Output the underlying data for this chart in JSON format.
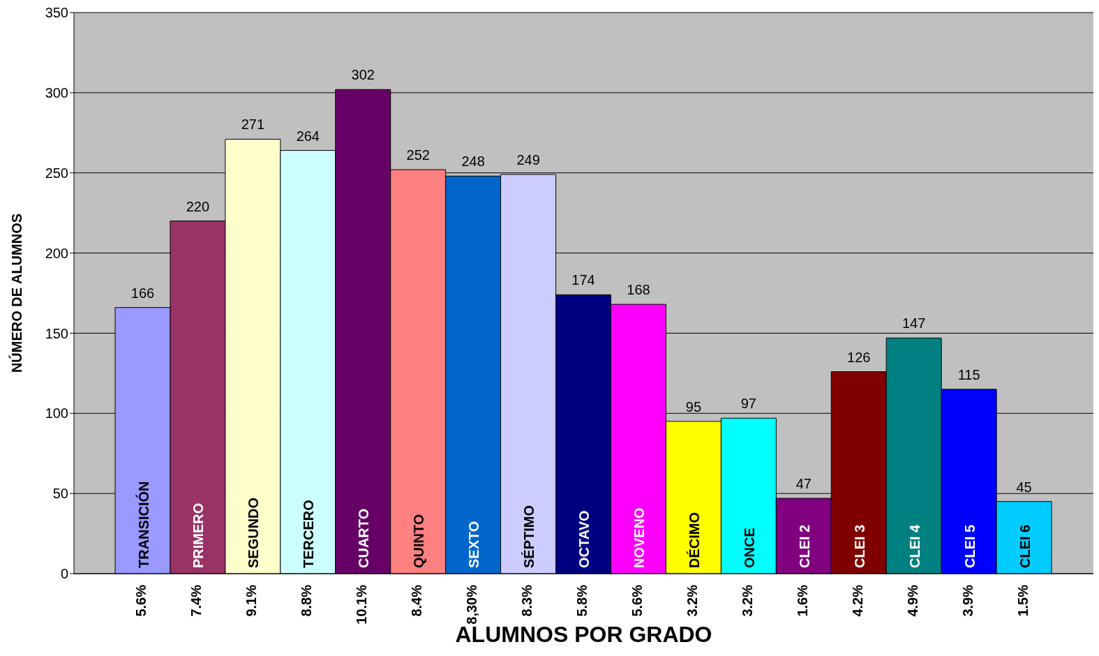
{
  "chart_data": {
    "type": "bar",
    "xlabel": "ALUMNOS POR GRADO",
    "ylabel": "NÚMERO DE ALUMNOS",
    "categories": [
      "TRANSICIÓN",
      "PRIMERO",
      "SEGUNDO",
      "TERCERO",
      "CUARTO",
      "QUINTO",
      "SEXTO",
      "SÉPTIMO",
      "OCTAVO",
      "NOVENO",
      "DÉCIMO",
      "ONCE",
      "CLEI 2",
      "CLEI 3",
      "CLEI 4",
      "CLEI 5",
      "CLEI 6"
    ],
    "values": [
      166,
      220,
      271,
      264,
      302,
      252,
      248,
      249,
      174,
      168,
      95,
      97,
      47,
      126,
      147,
      115,
      45
    ],
    "colors": [
      "#9999ff",
      "#993366",
      "#ffffcc",
      "#ccffff",
      "#660066",
      "#ff8080",
      "#0066cc",
      "#ccccff",
      "#000080",
      "#ff00ff",
      "#ffff00",
      "#00ffff",
      "#800080",
      "#800000",
      "#008080",
      "#0000ff",
      "#00ccff"
    ],
    "ylim": [
      0,
      350
    ],
    "yticks": [
      0,
      50,
      100,
      150,
      200,
      250,
      300,
      350
    ],
    "grid": "y",
    "data_labels": true,
    "annotations": [
      "5.6%",
      "7.4%",
      "9.1%",
      "8.8%",
      "10.1%",
      "8.4%",
      "8,30%",
      "8.3%",
      "5.8%",
      "5.6%",
      "3.2%",
      "3.2%",
      "1.6%",
      "4.2%",
      "4.9%",
      "3.9%",
      "1.5%"
    ]
  }
}
